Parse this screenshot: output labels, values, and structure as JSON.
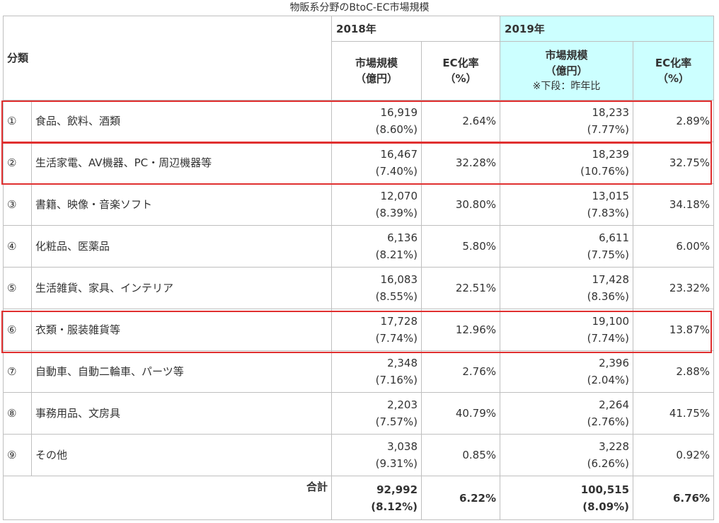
{
  "title": "物販系分野のBtoC-EC市場規模",
  "header": {
    "category": "分類",
    "year2018": "2018年",
    "year2019": "2019年",
    "market_size_line1": "市場規模",
    "market_size_line2": "（億円）",
    "ec_rate_line1": "EC化率",
    "ec_rate_line2": "（%）",
    "note_2019": "※下段：昨年比"
  },
  "rows": [
    {
      "num": "①",
      "name": "食品、飲料、酒類",
      "v2018": "16,919",
      "g2018": "(8.60%)",
      "r2018": "2.64%",
      "v2019": "18,233",
      "g2019": "(7.77%)",
      "r2019": "2.89%"
    },
    {
      "num": "②",
      "name": "生活家電、AV機器、PC・周辺機器等",
      "v2018": "16,467",
      "g2018": "(7.40%)",
      "r2018": "32.28%",
      "v2019": "18,239",
      "g2019": "(10.76%)",
      "r2019": "32.75%"
    },
    {
      "num": "③",
      "name": "書籍、映像・音楽ソフト",
      "v2018": "12,070",
      "g2018": "(8.39%)",
      "r2018": "30.80%",
      "v2019": "13,015",
      "g2019": "(7.83%)",
      "r2019": "34.18%"
    },
    {
      "num": "④",
      "name": "化粧品、医薬品",
      "v2018": "6,136",
      "g2018": "(8.21%)",
      "r2018": "5.80%",
      "v2019": "6,611",
      "g2019": "(7.75%)",
      "r2019": "6.00%"
    },
    {
      "num": "⑤",
      "name": "生活雑貨、家具、インテリア",
      "v2018": "16,083",
      "g2018": "(8.55%)",
      "r2018": "22.51%",
      "v2019": "17,428",
      "g2019": "(8.36%)",
      "r2019": "23.32%"
    },
    {
      "num": "⑥",
      "name": "衣類・服装雑貨等",
      "v2018": "17,728",
      "g2018": "(7.74%)",
      "r2018": "12.96%",
      "v2019": "19,100",
      "g2019": "(7.74%)",
      "r2019": "13.87%"
    },
    {
      "num": "⑦",
      "name": "自動車、自動二輪車、パーツ等",
      "v2018": "2,348",
      "g2018": "(7.16%)",
      "r2018": "2.76%",
      "v2019": "2,396",
      "g2019": "(2.04%)",
      "r2019": "2.88%"
    },
    {
      "num": "⑧",
      "name": "事務用品、文房具",
      "v2018": "2,203",
      "g2018": "(7.57%)",
      "r2018": "40.79%",
      "v2019": "2,264",
      "g2019": "(2.76%)",
      "r2019": "41.75%"
    },
    {
      "num": "⑨",
      "name": "その他",
      "v2018": "3,038",
      "g2018": "(9.31%)",
      "r2018": "0.85%",
      "v2019": "3,228",
      "g2019": "(6.26%)",
      "r2019": "0.92%"
    }
  ],
  "total": {
    "label": "合計",
    "v2018": "92,992",
    "g2018": "(8.12%)",
    "r2018": "6.22%",
    "v2019": "100,515",
    "g2019": "(8.09%)",
    "r2019": "6.76%"
  },
  "colors": {
    "highlight": "#e03030",
    "header_2019": "#ccffff",
    "border": "#bfbfbf"
  }
}
